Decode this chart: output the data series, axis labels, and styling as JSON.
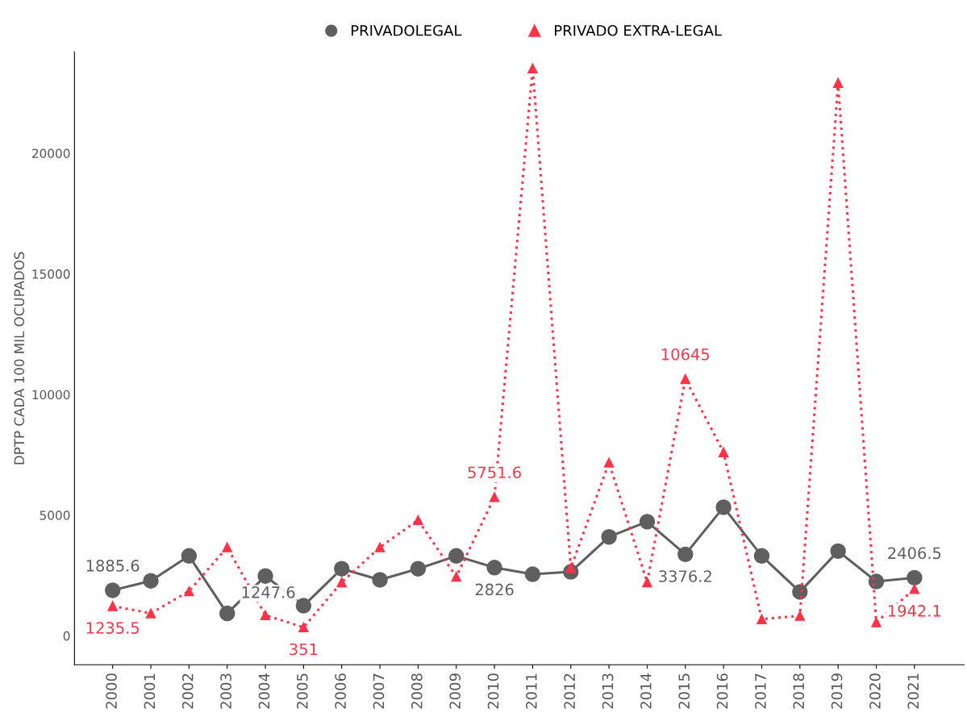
{
  "chart_data": {
    "type": "line",
    "ylabel": "DPTP CADA 100 MIL OCUPADOS",
    "categories": [
      "2000",
      "2001",
      "2002",
      "2003",
      "2004",
      "2005",
      "2006",
      "2007",
      "2008",
      "2009",
      "2010",
      "2011",
      "2012",
      "2013",
      "2014",
      "2015",
      "2016",
      "2017",
      "2018",
      "2019",
      "2020",
      "2021"
    ],
    "series": [
      {
        "name": "PRIVADOLEGAL",
        "color": "#5f5f5f",
        "marker": "circle",
        "line_style": "solid",
        "values": [
          1885.6,
          2280,
          3310,
          930,
          2480,
          1247.6,
          2780,
          2320,
          2780,
          3310,
          2826,
          2550,
          2650,
          4100,
          4730,
          3376.2,
          5330,
          3310,
          1820,
          3510,
          2250,
          2406.5
        ],
        "value_labels": [
          "1885.6",
          null,
          null,
          null,
          null,
          "1247.6",
          null,
          null,
          null,
          null,
          "2826",
          null,
          null,
          null,
          null,
          "3376.2",
          null,
          null,
          null,
          null,
          null,
          "2406.5"
        ]
      },
      {
        "name": "PRIVADO EXTRA-LEGAL",
        "color": "#ff3347",
        "marker": "triangle",
        "line_style": "dotted",
        "values": [
          1235.5,
          930,
          1850,
          3670,
          860,
          351,
          2220,
          3670,
          4800,
          2450,
          5751.6,
          23520,
          2810,
          7180,
          2220,
          10645,
          7610,
          690,
          830,
          22920,
          560,
          1942.1
        ],
        "value_labels": [
          "1235.5",
          null,
          null,
          null,
          null,
          "351",
          null,
          null,
          null,
          null,
          "5751.6",
          null,
          null,
          null,
          null,
          "10645",
          null,
          null,
          null,
          null,
          null,
          "1942.1"
        ]
      }
    ],
    "ylim": [
      -1200,
      24200
    ],
    "yticks": [
      0,
      5000,
      10000,
      15000,
      20000
    ],
    "grid": false,
    "legend": "top"
  }
}
